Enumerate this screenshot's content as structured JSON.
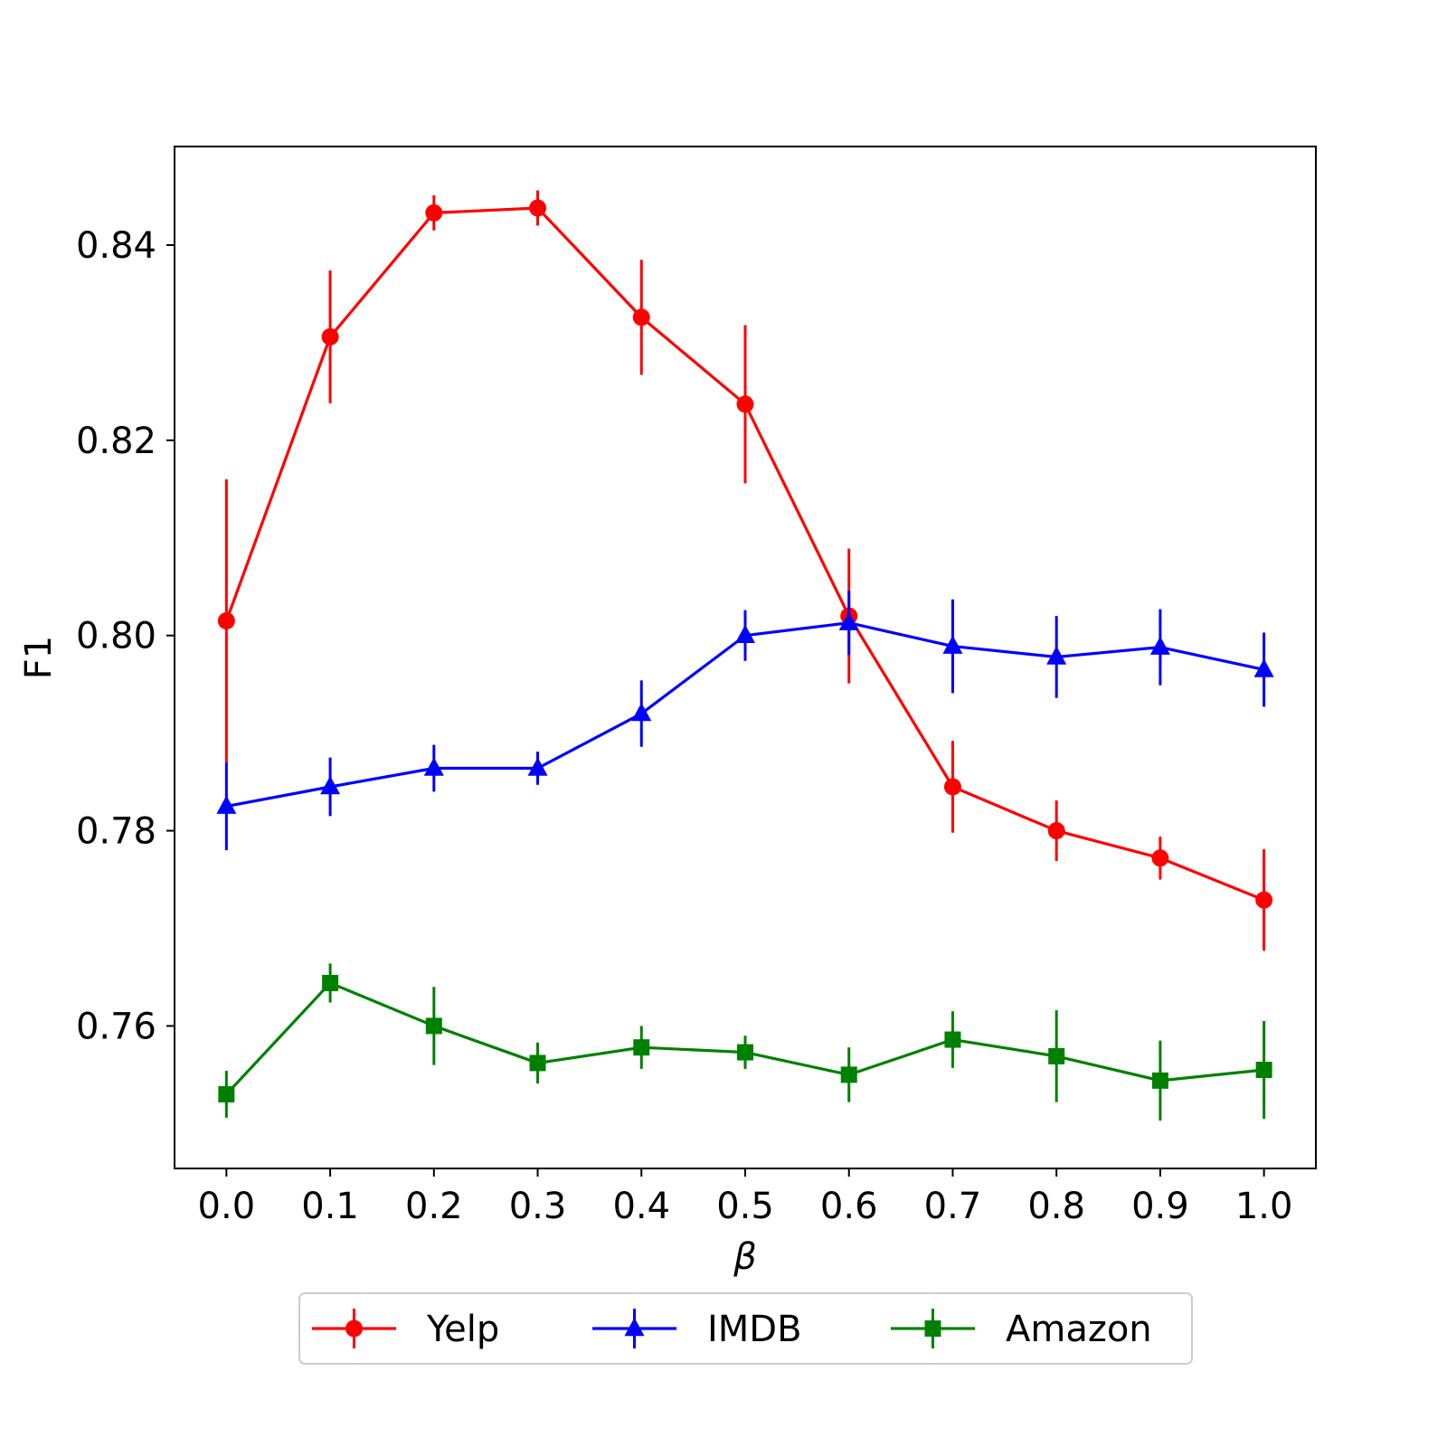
{
  "chart_data": {
    "type": "line",
    "title": "",
    "xlabel": "β",
    "ylabel": "F1",
    "x": [
      0.0,
      0.1,
      0.2,
      0.3,
      0.4,
      0.5,
      0.6,
      0.7,
      0.8,
      0.9,
      1.0
    ],
    "x_tick_labels": [
      "0.0",
      "0.1",
      "0.2",
      "0.3",
      "0.4",
      "0.5",
      "0.6",
      "0.7",
      "0.8",
      "0.9",
      "1.0"
    ],
    "y_tick_values": [
      0.76,
      0.78,
      0.8,
      0.82,
      0.84
    ],
    "y_tick_labels": [
      "0.76",
      "0.78",
      "0.80",
      "0.82",
      "0.84"
    ],
    "xlim": [
      -0.05,
      1.05
    ],
    "ylim": [
      0.7454,
      0.8501
    ],
    "grid": false,
    "legend_position": "bottom-center, below axes",
    "series": [
      {
        "name": "Yelp",
        "color": "#ff0000",
        "marker": "circle",
        "values": [
          0.8015,
          0.8306,
          0.8433,
          0.8438,
          0.8326,
          0.8237,
          0.802,
          0.7845,
          0.78,
          0.7772,
          0.7729
        ],
        "errors": [
          0.0145,
          0.0068,
          0.0018,
          0.0018,
          0.0059,
          0.0081,
          0.0069,
          0.0047,
          0.0031,
          0.0022,
          0.0052
        ]
      },
      {
        "name": "IMDB",
        "color": "#0000ff",
        "marker": "triangle",
        "values": [
          0.7825,
          0.7845,
          0.7864,
          0.7864,
          0.792,
          0.8,
          0.8013,
          0.7989,
          0.7978,
          0.7988,
          0.7965
        ],
        "errors": [
          0.0045,
          0.003,
          0.0024,
          0.0017,
          0.0034,
          0.0026,
          0.0033,
          0.0048,
          0.0042,
          0.0039,
          0.0038
        ]
      },
      {
        "name": "Amazon",
        "color": "#008000",
        "marker": "square",
        "values": [
          0.753,
          0.7644,
          0.76,
          0.7562,
          0.7578,
          0.7573,
          0.755,
          0.7586,
          0.7569,
          0.7544,
          0.7555
        ],
        "errors": [
          0.0024,
          0.002,
          0.004,
          0.0021,
          0.0022,
          0.0017,
          0.0028,
          0.0029,
          0.0047,
          0.0041,
          0.005
        ]
      }
    ]
  }
}
